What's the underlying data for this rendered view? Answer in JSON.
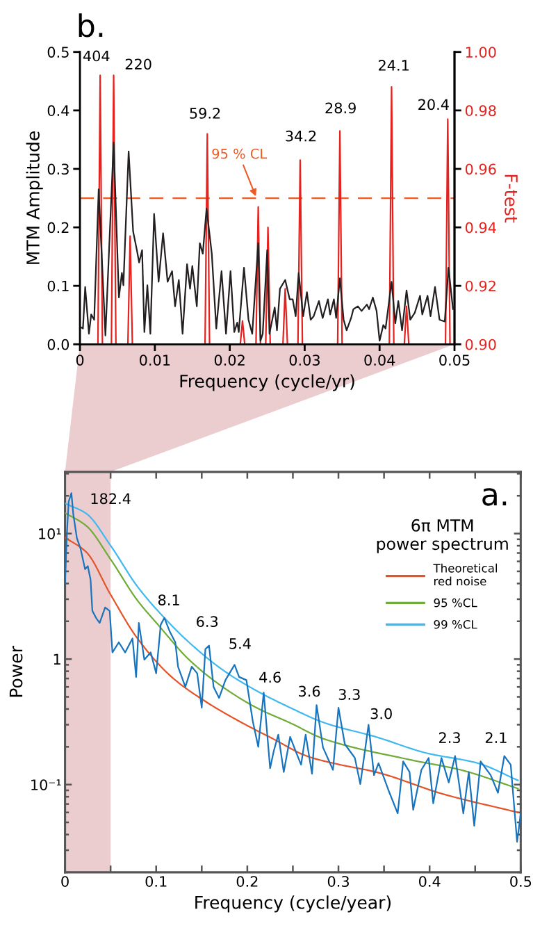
{
  "chart_data": [
    {
      "type": "line",
      "xlabel": "Frequency (cycle/yr)",
      "ylabel": "MTM Amplitude",
      "y2label": "F-test",
      "xlim": [
        0,
        0.05
      ],
      "xticks": [
        0,
        0.01,
        0.02,
        0.03,
        0.04,
        0.05
      ],
      "ylim": [
        0,
        0.5
      ],
      "yticks": [
        {
          "value": 0,
          "label": "0.0"
        },
        {
          "value": 0.1,
          "label": "0.1"
        },
        {
          "value": 0.2,
          "label": "0.2"
        },
        {
          "value": 0.3,
          "label": "0.3"
        },
        {
          "value": 0.4,
          "label": "0.4"
        },
        {
          "value": 0.5,
          "label": "0.5"
        }
      ],
      "y2lim": [
        0.9,
        1.0
      ],
      "y2ticks": [
        {
          "value": 0.9,
          "label": "0.90"
        },
        {
          "value": 0.92,
          "label": "0.92"
        },
        {
          "value": 0.94,
          "label": "0.94"
        },
        {
          "value": 0.96,
          "label": "0.96"
        },
        {
          "value": 0.98,
          "label": "0.98"
        },
        {
          "value": 1.0,
          "label": "1.00"
        }
      ],
      "ref_lines": [
        {
          "axis": "y2",
          "value": 0.95,
          "label": "95 % CL",
          "color": "#ee5a24",
          "line_style": "dashed"
        }
      ],
      "annotations": [
        "b.",
        "404",
        "220",
        "59.2",
        "34.2",
        "28.9",
        "24.1",
        "20.4"
      ],
      "series": [
        {
          "color": "#231f20",
          "x": [
            0,
            0.0004,
            0.0007,
            0.0012,
            0.0015,
            0.0019,
            0.0025,
            0.0034,
            0.0045,
            0.0052,
            0.0056,
            0.0058,
            0.0065,
            0.0071,
            0.0076,
            0.0079,
            0.0083,
            0.0086,
            0.009,
            0.0094,
            0.0099,
            0.0105,
            0.0111,
            0.0117,
            0.0123,
            0.0127,
            0.0132,
            0.0137,
            0.0143,
            0.0147,
            0.015,
            0.0156,
            0.016,
            0.0164,
            0.0169,
            0.0176,
            0.0182,
            0.0189,
            0.0195,
            0.0201,
            0.0206,
            0.021,
            0.0212,
            0.0219,
            0.0225,
            0.023,
            0.0238,
            0.0241,
            0.0244,
            0.025,
            0.0253,
            0.026,
            0.0263,
            0.0267,
            0.0274,
            0.028,
            0.0284,
            0.0288,
            0.0292,
            0.0298,
            0.0303,
            0.0308,
            0.0312,
            0.0319,
            0.0324,
            0.0331,
            0.0334,
            0.0339,
            0.0342,
            0.0347,
            0.0352,
            0.0356,
            0.0362,
            0.0365,
            0.0371,
            0.0376,
            0.0383,
            0.0386,
            0.0391,
            0.0396,
            0.04,
            0.0405,
            0.0408,
            0.0416,
            0.0421,
            0.0425,
            0.043,
            0.0436,
            0.0441,
            0.0447,
            0.0454,
            0.0457,
            0.0464,
            0.0468,
            0.0474,
            0.048,
            0.0487,
            0.0492,
            0.0498,
            0.05
          ],
          "values": [
            0.03,
            0.027,
            0.098,
            0.018,
            0.051,
            0.042,
            0.265,
            0.015,
            0.345,
            0.08,
            0.122,
            0.101,
            0.33,
            0.193,
            0.161,
            0.14,
            0.161,
            0.021,
            0.101,
            0.018,
            0.223,
            0.107,
            0.19,
            0.107,
            0.125,
            0.065,
            0.11,
            0.018,
            0.137,
            0.095,
            0.134,
            0.065,
            0.173,
            0.155,
            0.232,
            0.155,
            0.027,
            0.125,
            0.018,
            0.125,
            0.021,
            0.037,
            0.021,
            0.131,
            0.042,
            0.018,
            0.173,
            0.006,
            0.018,
            0.161,
            0.018,
            0.063,
            0.024,
            0.095,
            0.11,
            0.077,
            0.077,
            0.048,
            0.122,
            0.048,
            0.089,
            0.042,
            0.048,
            0.074,
            0.045,
            0.077,
            0.051,
            0.077,
            0.045,
            0.113,
            0.042,
            0.024,
            0.045,
            0.06,
            0.065,
            0.057,
            0.068,
            0.06,
            0.08,
            0.057,
            0.006,
            0.033,
            0.027,
            0.107,
            0.036,
            0.074,
            0.024,
            0.092,
            0.042,
            0.054,
            0.083,
            0.051,
            0.083,
            0.048,
            0.098,
            0.042,
            0.039,
            0.131,
            0.06,
            0.065
          ]
        },
        {
          "axis": "y2",
          "color": "#e42320",
          "x": [
            0.0024,
            0.0027,
            0.003,
            0.0042,
            0.0045,
            0.0048,
            0.0064,
            0.0067,
            0.007,
            0.0167,
            0.017,
            0.0173,
            0.0214,
            0.0217,
            0.022,
            0.0235,
            0.0238,
            0.0241,
            0.0248,
            0.0251,
            0.0254,
            0.0271,
            0.0274,
            0.0277,
            0.0291,
            0.0294,
            0.0297,
            0.0344,
            0.0347,
            0.035,
            0.0413,
            0.0416,
            0.0419,
            0.0433,
            0.0436,
            0.0439,
            0.0488,
            0.0491,
            0.0494
          ],
          "values": [
            0.9,
            0.992,
            0.9,
            0.9,
            0.992,
            0.9,
            0.9,
            0.937,
            0.9,
            0.9,
            0.972,
            0.9,
            0.9,
            0.908,
            0.9,
            0.9,
            0.947,
            0.9,
            0.9,
            0.94,
            0.9,
            0.9,
            0.919,
            0.9,
            0.9,
            0.963,
            0.9,
            0.9,
            0.973,
            0.9,
            0.9,
            0.988,
            0.9,
            0.9,
            0.913,
            0.9,
            0.9,
            0.977,
            0.9
          ]
        }
      ]
    },
    {
      "type": "line",
      "log": "y",
      "xlabel": "Frequency (cycle/year)",
      "ylabel": "Power",
      "legend_title": "6π MTM\npower spectrum",
      "legend": "top right",
      "xlim": [
        0,
        0.5
      ],
      "xticks": [
        0,
        {
          "value": 0.05,
          "label": null
        },
        0.1,
        {
          "value": 0.15,
          "label": null
        },
        0.2,
        {
          "value": 0.25,
          "label": null
        },
        0.3,
        {
          "value": 0.35,
          "label": null
        },
        0.4,
        {
          "value": 0.45,
          "label": null
        },
        0.5
      ],
      "ylim": [
        0.02,
        31
      ],
      "yticks": [
        {
          "value": 0.1,
          "label": "10⁻¹"
        },
        1,
        {
          "value": 10,
          "label": "10¹"
        }
      ],
      "bands": [
        {
          "axis": "x",
          "from": 0,
          "to": 0.05,
          "color": "#ebcdd0"
        }
      ],
      "annotations": [
        "a.",
        "182.4",
        "8.1",
        "6.3",
        "5.4",
        "4.6",
        "3.6",
        "3.3",
        "3.0",
        "2.3",
        "2.1"
      ],
      "series": [
        {
          "name": "Theoretical\nred noise",
          "color": "#e4542a",
          "x": [
            0,
            0.0235,
            0.0496,
            0.0795,
            0.117,
            0.154,
            0.191,
            0.229,
            0.266,
            0.3,
            0.341,
            0.415,
            0.497
          ],
          "values": [
            9.3,
            7.1,
            3.3,
            1.46,
            0.72,
            0.46,
            0.32,
            0.23,
            0.168,
            0.145,
            0.126,
            0.084,
            0.06
          ]
        },
        {
          "name": "95 %CL",
          "color": "#6fac3a",
          "x": [
            0,
            0.0235,
            0.0496,
            0.0795,
            0.102,
            0.136,
            0.173,
            0.21,
            0.247,
            0.285,
            0.378,
            0.434,
            0.497
          ],
          "values": [
            14.6,
            11.5,
            6.3,
            2.93,
            1.88,
            0.99,
            0.6,
            0.41,
            0.31,
            0.23,
            0.158,
            0.131,
            0.093
          ]
        },
        {
          "name": "99 %CL",
          "color": "#41b8ee",
          "x": [
            0,
            0.0235,
            0.0496,
            0.0795,
            0.109,
            0.136,
            0.173,
            0.21,
            0.247,
            0.285,
            0.341,
            0.397,
            0.453,
            0.497
          ],
          "values": [
            17.4,
            14.4,
            8.1,
            3.78,
            2.13,
            1.36,
            0.82,
            0.56,
            0.41,
            0.31,
            0.24,
            0.178,
            0.148,
            0.108
          ]
        },
        {
          "color": "#1874bd",
          "x": [
            0,
            0.002,
            0.004,
            0.007,
            0.009,
            0.013,
            0.017,
            0.022,
            0.025,
            0.028,
            0.03,
            0.034,
            0.038,
            0.044,
            0.049,
            0.052,
            0.059,
            0.066,
            0.074,
            0.078,
            0.081,
            0.087,
            0.094,
            0.1,
            0.105,
            0.109,
            0.115,
            0.121,
            0.124,
            0.132,
            0.139,
            0.145,
            0.15,
            0.154,
            0.158,
            0.163,
            0.169,
            0.176,
            0.186,
            0.191,
            0.199,
            0.206,
            0.212,
            0.218,
            0.225,
            0.229,
            0.234,
            0.24,
            0.247,
            0.255,
            0.259,
            0.264,
            0.271,
            0.276,
            0.283,
            0.294,
            0.3,
            0.307,
            0.318,
            0.324,
            0.333,
            0.339,
            0.344,
            0.356,
            0.365,
            0.371,
            0.378,
            0.382,
            0.391,
            0.399,
            0.404,
            0.413,
            0.421,
            0.428,
            0.437,
            0.443,
            0.449,
            0.456,
            0.467,
            0.475,
            0.482,
            0.489,
            0.496,
            0.5
          ],
          "values": [
            4.0,
            9.8,
            18,
            21,
            14.4,
            9.2,
            7.6,
            5.2,
            5.5,
            4.3,
            2.42,
            2.13,
            1.94,
            2.58,
            2.42,
            1.13,
            1.36,
            1.13,
            1.46,
            0.72,
            1.94,
            0.99,
            1.13,
            0.77,
            1.88,
            2.13,
            1.65,
            1.36,
            0.87,
            0.6,
            0.87,
            0.77,
            0.41,
            1.2,
            1.28,
            0.6,
            0.49,
            0.68,
            0.9,
            0.72,
            0.68,
            0.32,
            0.2,
            0.54,
            0.135,
            0.185,
            0.25,
            0.126,
            0.24,
            0.17,
            0.144,
            0.25,
            0.122,
            0.43,
            0.198,
            0.131,
            0.41,
            0.21,
            0.163,
            0.101,
            0.3,
            0.119,
            0.148,
            0.086,
            0.059,
            0.153,
            0.126,
            0.063,
            0.131,
            0.163,
            0.071,
            0.163,
            0.104,
            0.169,
            0.059,
            0.126,
            0.047,
            0.153,
            0.119,
            0.086,
            0.169,
            0.144,
            0.035,
            0.059
          ]
        }
      ]
    }
  ]
}
